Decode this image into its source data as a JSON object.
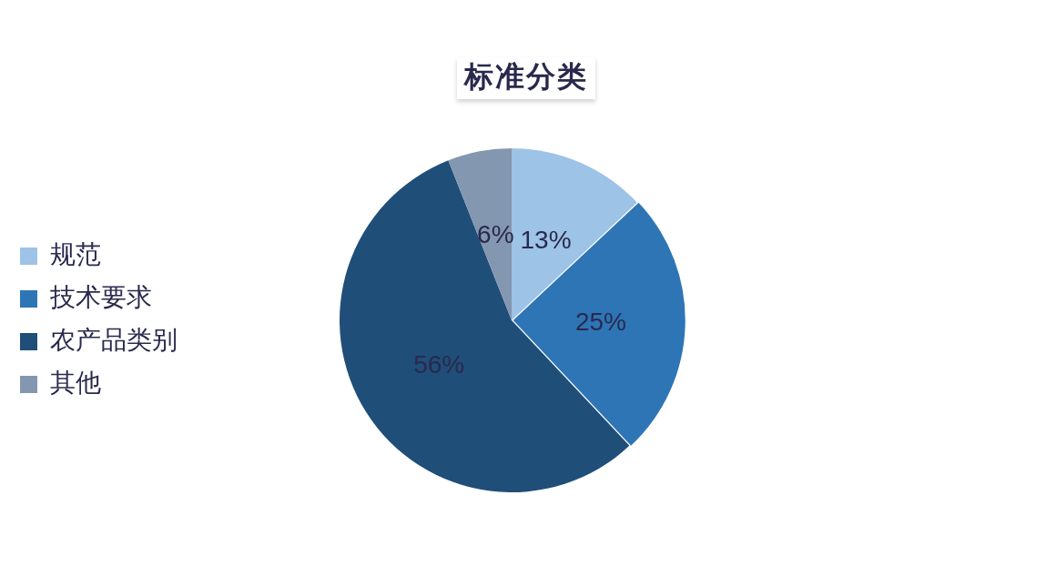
{
  "chart_data": {
    "type": "pie",
    "title": "标准分类",
    "categories": [
      "规范",
      "技术要求",
      "农产品类别",
      "其他"
    ],
    "values": [
      13,
      25,
      56,
      6
    ],
    "colors": [
      "#9dc3e6",
      "#2e75b6",
      "#1f4e79",
      "#8497b0"
    ],
    "value_labels": [
      "13%",
      "25%",
      "56%",
      "6%"
    ],
    "legend": "left"
  }
}
